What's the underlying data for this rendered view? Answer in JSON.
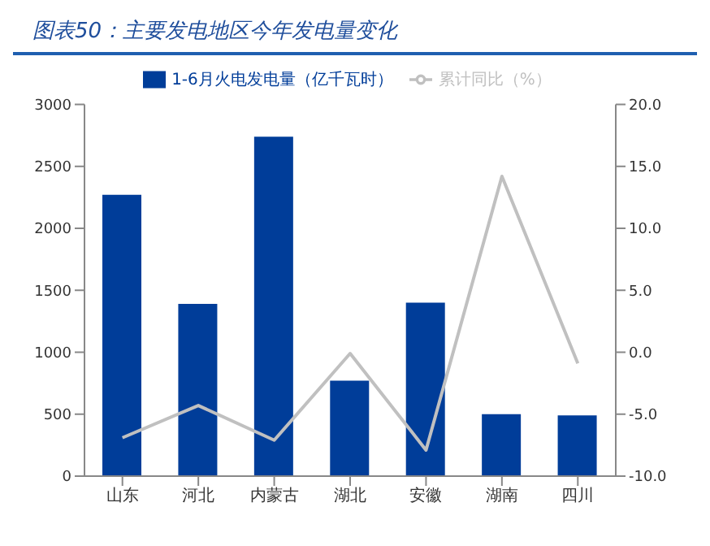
{
  "chart_data": {
    "type": "bar",
    "title": "图表50：主要发电地区今年发电量变化",
    "categories": [
      "山东",
      "河北",
      "内蒙古",
      "湖北",
      "安徽",
      "湖南",
      "四川"
    ],
    "series": [
      {
        "name": "1-6月火电发电量（亿千瓦时）",
        "color": "#003d99",
        "values": [
          2270,
          1390,
          2740,
          770,
          1400,
          500,
          490
        ]
      },
      {
        "name": "累计同比（%）",
        "type": "line",
        "axis": "y2",
        "color": "#c0c0c0",
        "values": [
          -6.9,
          -4.3,
          -7.1,
          -0.1,
          -7.9,
          14.2,
          -0.9
        ]
      }
    ],
    "ylim": [
      0,
      3000
    ],
    "yticks": [
      0,
      500,
      1000,
      1500,
      2000,
      2500,
      3000
    ],
    "y2lim": [
      -10,
      20
    ],
    "y2ticks": [
      {
        "value": -10,
        "label": "-10.0"
      },
      {
        "value": -5,
        "label": "-5.0"
      },
      {
        "value": 0,
        "label": "0.0"
      },
      {
        "value": 5,
        "label": "5.0"
      },
      {
        "value": 10,
        "label": "10.0"
      },
      {
        "value": 15,
        "label": "15.0"
      },
      {
        "value": 20,
        "label": "20.0"
      }
    ],
    "legend": "top",
    "grid": false,
    "marker": "none"
  }
}
